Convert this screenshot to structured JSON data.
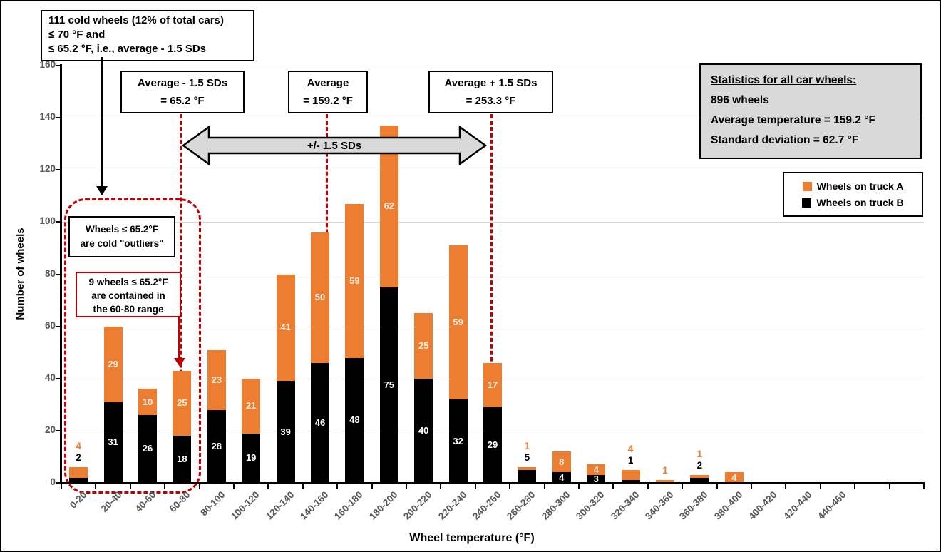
{
  "chart_data": {
    "type": "bar",
    "stacked": true,
    "xlabel": "Wheel temperature (°F)",
    "ylabel": "Number of wheels",
    "ylim": [
      0,
      160
    ],
    "ytick_interval": 20,
    "grid": true,
    "legend_position": "right-inside",
    "categories": [
      "0-20",
      "20-40",
      "40-60",
      "60-80",
      "80-100",
      "100-120",
      "120-140",
      "140-160",
      "160-180",
      "180-200",
      "200-220",
      "220-240",
      "240-260",
      "260-280",
      "280-300",
      "300-320",
      "320-340",
      "340-360",
      "360-380",
      "380-400",
      "400-420",
      "420-440",
      "440-460"
    ],
    "series": [
      {
        "name": "Wheels on truck B",
        "color": "#000000",
        "values": [
          2,
          31,
          26,
          18,
          28,
          19,
          39,
          46,
          48,
          75,
          40,
          32,
          29,
          5,
          4,
          3,
          1,
          0,
          2,
          0,
          0,
          0,
          0
        ]
      },
      {
        "name": "Wheels on truck A",
        "color": "#ED7D31",
        "values": [
          4,
          29,
          10,
          25,
          23,
          21,
          41,
          50,
          59,
          62,
          25,
          59,
          17,
          1,
          8,
          4,
          4,
          1,
          1,
          4,
          0,
          0,
          0
        ]
      }
    ],
    "label_placement": [
      "above",
      "in",
      "in",
      "in",
      "in",
      "in",
      "in",
      "in",
      "in",
      "in",
      "in",
      "in",
      "in",
      "above",
      "in",
      "in",
      "above",
      "above",
      "above",
      "in",
      "none",
      "none",
      "none"
    ]
  },
  "colors": {
    "truckA": "#ED7D31",
    "truckB": "#000000",
    "red": "#C00000",
    "gray_fill": "#D9D9D9",
    "grid": "#D9D9D9",
    "tick_text": "#595959",
    "label_in_orange": "#FCF1E1",
    "label_in_black": "#FFFFFF"
  },
  "annotations": {
    "cold_box": {
      "line1": "111 cold wheels (12% of total cars)",
      "line2": "≤ 70 °F and",
      "line3": "≤ 65.2 °F, i.e., average - 1.5 SDs"
    },
    "avg_boxes": [
      {
        "line1": "Average - 1.5 SDs",
        "line2": "= 65.2 °F"
      },
      {
        "line1": "Average",
        "line2": "= 159.2 °F"
      },
      {
        "line1": "Average + 1.5 SDs",
        "line2": "= 253.3 °F"
      }
    ],
    "sd_arrow_label": "+/- 1.5 SDs",
    "outlier_box": {
      "line1": "Wheels ≤ 65.2°F",
      "line2": "are cold \"outliers\""
    },
    "nine_box": {
      "line1": "9 wheels ≤ 65.2°F",
      "line2": "are contained in",
      "line3": "the 60-80 range"
    }
  },
  "stats_box": {
    "title": "Statistics for all car wheels:",
    "line1": "896 wheels",
    "line2": "Average temperature = 159.2 °F",
    "line3": "Standard deviation = 62.7 °F"
  },
  "legend": {
    "items": [
      {
        "label": "Wheels on truck A",
        "color": "#ED7D31"
      },
      {
        "label": "Wheels on truck B",
        "color": "#000000"
      }
    ]
  }
}
